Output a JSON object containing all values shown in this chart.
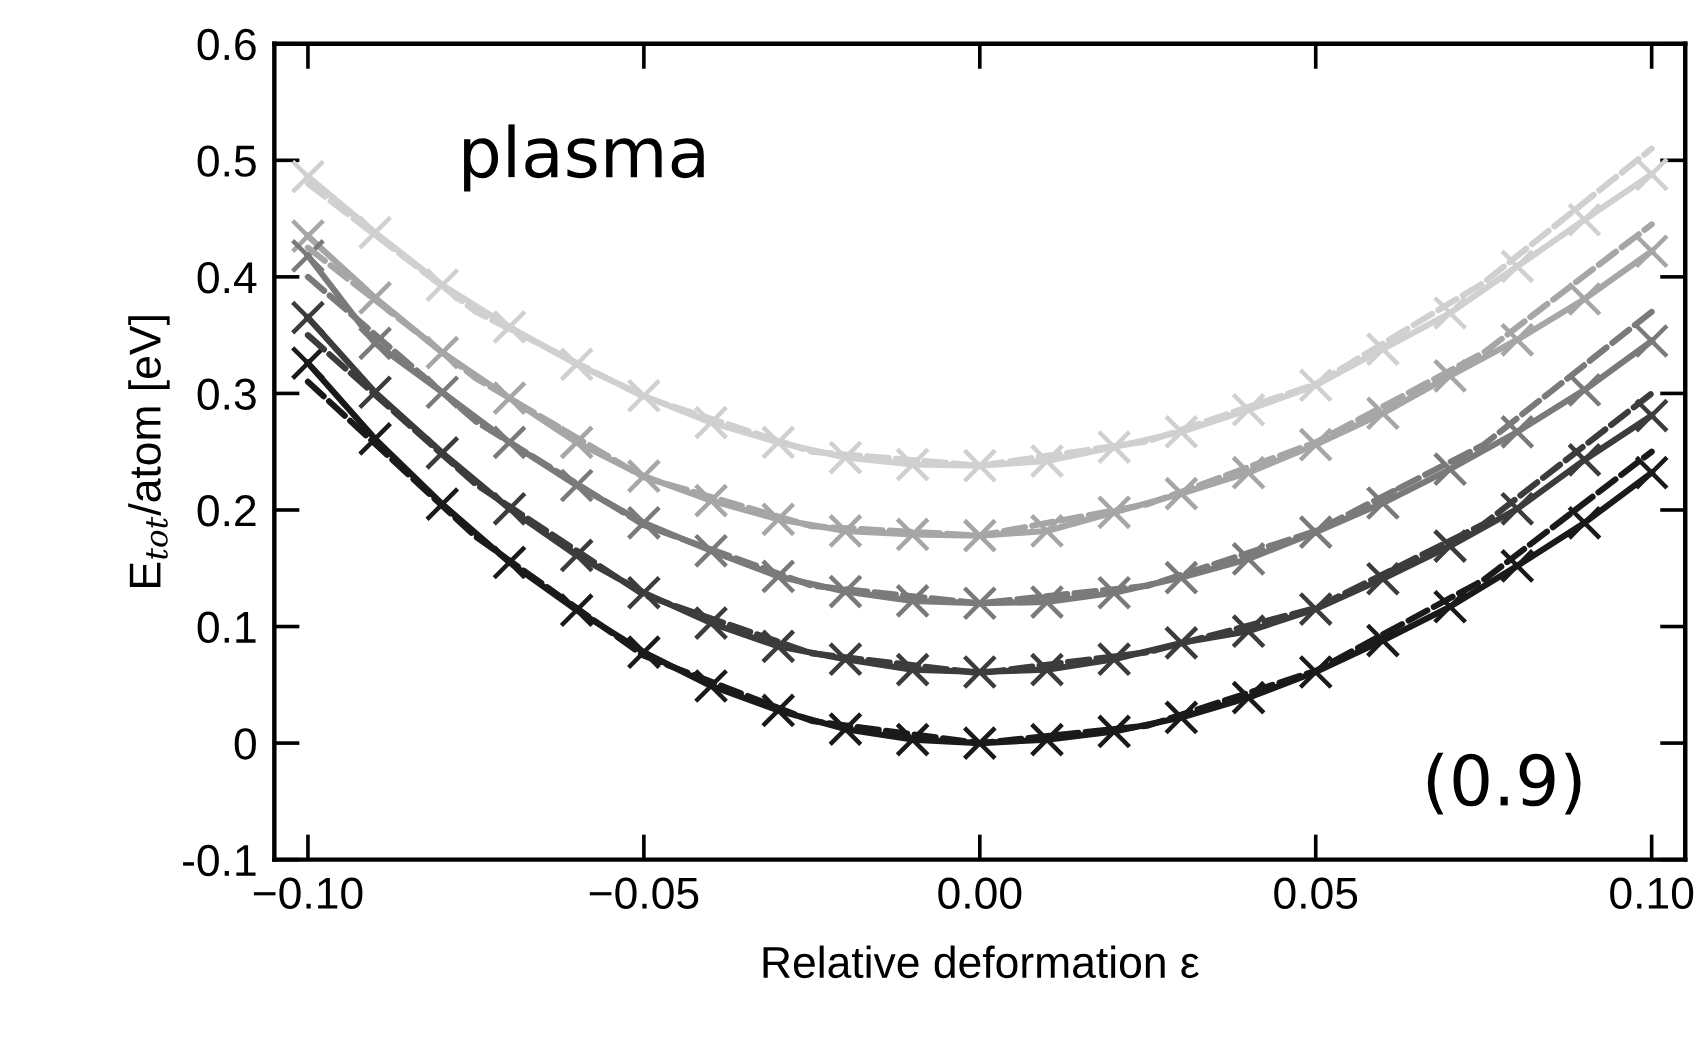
{
  "chart_data": {
    "type": "line",
    "xlabel": "Relative deformation ε",
    "ylabel": "E$_{tot}$/atom [eV]",
    "annotations": [
      "plasma",
      "(0.9)"
    ],
    "xlim": [
      -0.105,
      0.105
    ],
    "ylim": [
      -0.1,
      0.6
    ],
    "xticks": [
      {
        "value": -0.1,
        "label": "−0.10"
      },
      {
        "value": -0.05,
        "label": "−0.05"
      },
      {
        "value": 0,
        "label": "0.00"
      },
      {
        "value": 0.05,
        "label": "0.05"
      },
      {
        "value": 0.1,
        "label": "0.10"
      }
    ],
    "yticks": [
      {
        "value": -0.1,
        "label": "-0.1"
      },
      0,
      0.1,
      0.2,
      0.3,
      0.4,
      0.5,
      0.6
    ],
    "x": [
      -0.1,
      -0.09,
      -0.08,
      -0.07,
      -0.06,
      -0.05,
      -0.04,
      -0.03,
      -0.02,
      -0.01,
      0,
      0.01,
      0.02,
      0.03,
      0.04,
      0.05,
      0.06,
      0.07,
      0.08,
      0.09,
      0.1
    ],
    "marker": "cross",
    "line_style": "solid",
    "series": [
      {
        "color": "#d0d0d0",
        "values": [
          0.486,
          0.438,
          0.393,
          0.357,
          0.325,
          0.298,
          0.275,
          0.258,
          0.245,
          0.239,
          0.238,
          0.242,
          0.254,
          0.267,
          0.286,
          0.307,
          0.338,
          0.369,
          0.409,
          0.449,
          0.488
        ]
      },
      {
        "color": "#a6a6a6",
        "values": [
          0.435,
          0.382,
          0.335,
          0.296,
          0.258,
          0.229,
          0.208,
          0.192,
          0.182,
          0.179,
          0.178,
          0.182,
          0.198,
          0.214,
          0.232,
          0.256,
          0.283,
          0.315,
          0.346,
          0.381,
          0.422
        ]
      },
      {
        "color": "#7a7a7a",
        "values": [
          0.418,
          0.343,
          0.301,
          0.258,
          0.221,
          0.189,
          0.165,
          0.143,
          0.13,
          0.122,
          0.12,
          0.121,
          0.129,
          0.142,
          0.158,
          0.181,
          0.206,
          0.235,
          0.267,
          0.303,
          0.345
        ]
      },
      {
        "color": "#3c3c3c",
        "values": [
          0.365,
          0.301,
          0.249,
          0.201,
          0.161,
          0.129,
          0.103,
          0.083,
          0.072,
          0.063,
          0.061,
          0.063,
          0.072,
          0.086,
          0.096,
          0.115,
          0.141,
          0.169,
          0.201,
          0.243,
          0.281
        ]
      },
      {
        "color": "#1a1a1a",
        "values": [
          0.326,
          0.261,
          0.205,
          0.155,
          0.114,
          0.078,
          0.049,
          0.028,
          0.012,
          0.003,
          0,
          0.003,
          0.01,
          0.022,
          0.039,
          0.061,
          0.088,
          0.117,
          0.152,
          0.189,
          0.232
        ]
      },
      {
        "color": "#d0d0d0",
        "marker": "none",
        "line_style": "dashed",
        "x": [
          -0.1,
          -0.075,
          -0.05,
          -0.025,
          0,
          0.025,
          0.05,
          0.075,
          0.1
        ],
        "values": [
          0.48,
          0.37,
          0.297,
          0.25,
          0.238,
          0.259,
          0.308,
          0.395,
          0.51
        ]
      },
      {
        "color": "#a6a6a6",
        "marker": "none",
        "line_style": "dashed",
        "x": [
          -0.1,
          -0.075,
          -0.05,
          -0.025,
          0,
          0.025,
          0.05,
          0.075,
          0.1
        ],
        "values": [
          0.425,
          0.313,
          0.228,
          0.186,
          0.178,
          0.205,
          0.258,
          0.335,
          0.445
        ]
      },
      {
        "color": "#7a7a7a",
        "marker": "none",
        "line_style": "dashed",
        "x": [
          -0.1,
          -0.075,
          -0.05,
          -0.025,
          0,
          0.025,
          0.05,
          0.075,
          0.1
        ],
        "values": [
          0.4,
          0.276,
          0.187,
          0.135,
          0.12,
          0.135,
          0.182,
          0.256,
          0.37
        ]
      },
      {
        "color": "#3c3c3c",
        "marker": "none",
        "line_style": "dashed",
        "x": [
          -0.1,
          -0.075,
          -0.05,
          -0.025,
          0,
          0.025,
          0.05,
          0.075,
          0.1
        ],
        "values": [
          0.35,
          0.222,
          0.127,
          0.077,
          0.06,
          0.078,
          0.116,
          0.188,
          0.3
        ]
      },
      {
        "color": "#1a1a1a",
        "marker": "none",
        "line_style": "dashed",
        "x": [
          -0.1,
          -0.075,
          -0.05,
          -0.025,
          0,
          0.025,
          0.05,
          0.075,
          0.1
        ],
        "values": [
          0.31,
          0.177,
          0.075,
          0.019,
          0,
          0.015,
          0.062,
          0.14,
          0.25
        ]
      }
    ]
  }
}
